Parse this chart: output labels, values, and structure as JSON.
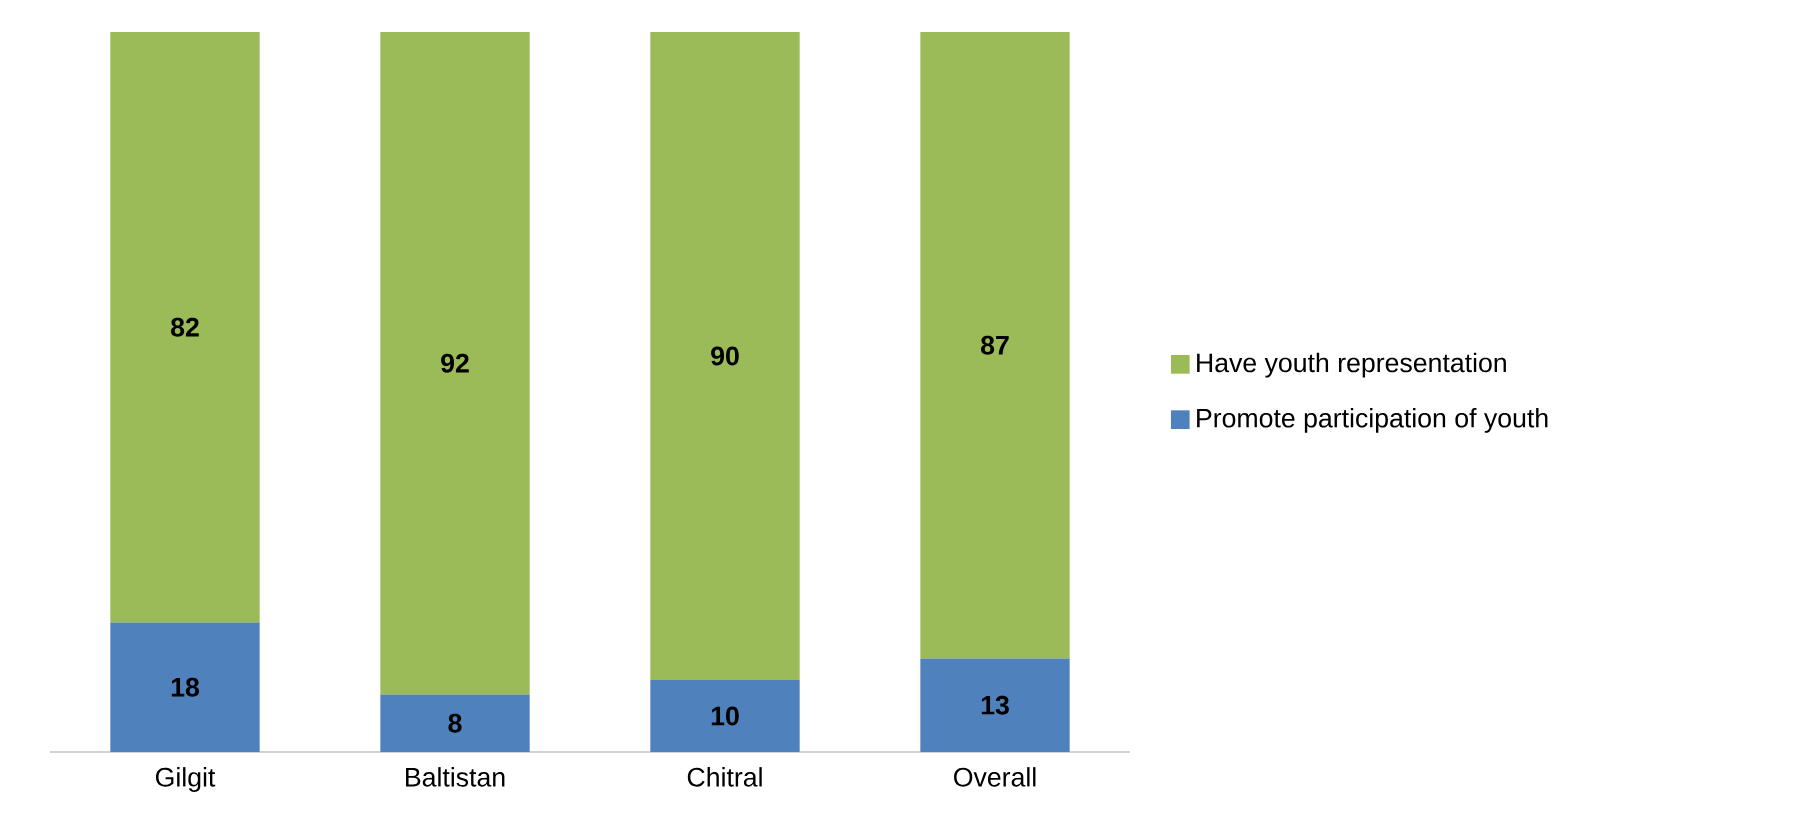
{
  "chart_data": {
    "type": "bar",
    "stacked": true,
    "categories": [
      "Gilgit",
      "Baltistan",
      "Chitral",
      "Overall"
    ],
    "series": [
      {
        "name": "Promote participation of youth",
        "color": "#4f81bd",
        "values": [
          18,
          8,
          10,
          13
        ]
      },
      {
        "name": "Have youth representation",
        "color": "#9bbb59",
        "values": [
          82,
          92,
          90,
          87
        ]
      }
    ],
    "data_labels": true,
    "legend": "right",
    "tick_labels": "x"
  }
}
